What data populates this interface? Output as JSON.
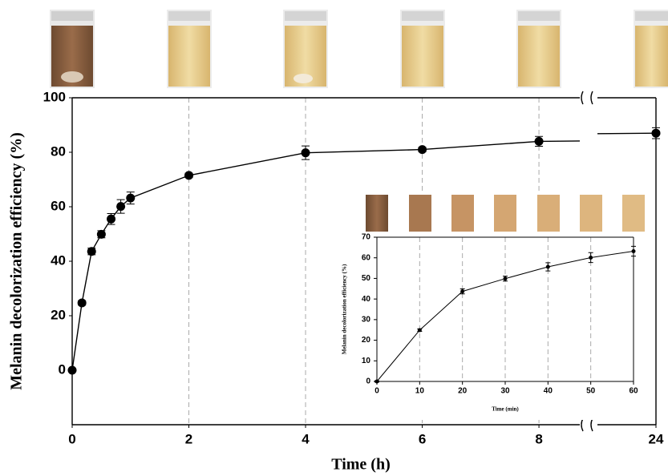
{
  "chart_data": [
    {
      "type": "line",
      "x": [
        0,
        0.167,
        0.333,
        0.5,
        0.667,
        0.833,
        1,
        2,
        4,
        6,
        8,
        24
      ],
      "values": [
        0,
        24.7,
        43.6,
        49.9,
        55.5,
        60.1,
        63.2,
        71.5,
        79.8,
        81.0,
        84.0,
        87.0
      ],
      "errors": [
        0.5,
        0.8,
        1.2,
        1.3,
        2.0,
        2.5,
        2.2,
        0.8,
        2.5,
        0.8,
        1.8,
        2.0
      ],
      "xlim": [
        0,
        24
      ],
      "xbreak": [
        8.7,
        23
      ],
      "xticks": [
        0,
        2,
        4,
        6,
        8,
        24
      ],
      "ylim": [
        -20,
        100
      ],
      "yticks": [
        0,
        20,
        40,
        60,
        80,
        100
      ],
      "xlabel": "Time (h)",
      "ylabel": "Melanin decolorization efficiency (%)",
      "color": "#000000",
      "grid": "x"
    },
    {
      "type": "line",
      "x": [
        0,
        10,
        20,
        30,
        40,
        50,
        60
      ],
      "values": [
        0,
        24.9,
        43.7,
        49.9,
        55.6,
        60.1,
        63.2
      ],
      "errors": [
        0.3,
        0.6,
        1.2,
        1.2,
        2.0,
        2.4,
        2.4
      ],
      "xlim": [
        0,
        60
      ],
      "xticks": [
        0,
        10,
        20,
        30,
        40,
        50,
        60
      ],
      "ylim": [
        0,
        70
      ],
      "yticks": [
        0,
        10,
        20,
        30,
        40,
        50,
        60,
        70
      ],
      "xlabel": "Time (min)",
      "ylabel": "Melanin decolorization efficiency (%)",
      "color": "#000000",
      "grid": "x"
    }
  ]
}
